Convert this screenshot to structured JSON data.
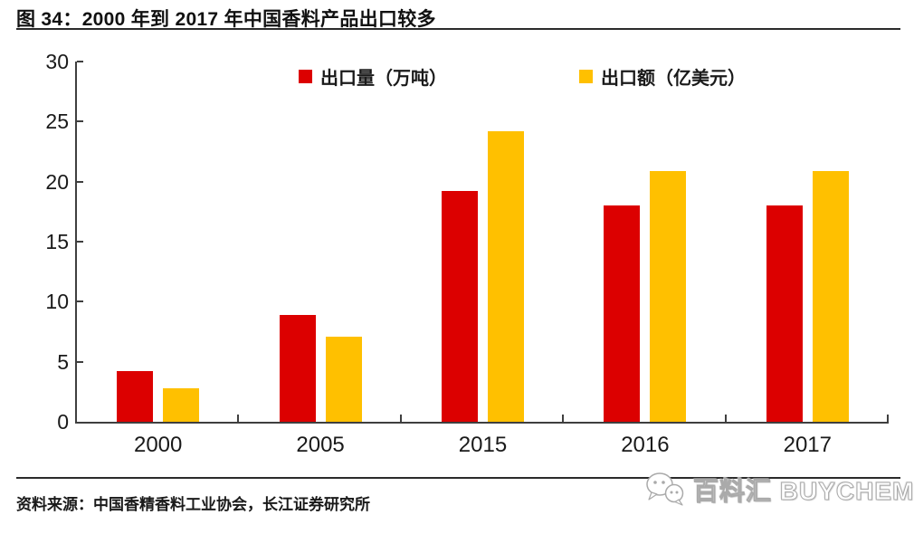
{
  "header": {
    "title": "图 34：2000 年到 2017 年中国香料产品出口较多"
  },
  "chart_data": {
    "type": "bar",
    "title": "2000 年到 2017 年中国香料产品出口较多",
    "categories": [
      "2000",
      "2005",
      "2015",
      "2016",
      "2017"
    ],
    "series": [
      {
        "name": "出口量（万吨）",
        "color": "#dc0000",
        "values": [
          4.2,
          8.9,
          19.2,
          18.0,
          18.0
        ]
      },
      {
        "name": "出口额（亿美元）",
        "color": "#ffc000",
        "values": [
          2.8,
          7.1,
          24.2,
          20.9,
          20.9
        ]
      }
    ],
    "xlabel": "",
    "ylabel": "",
    "ylim": [
      0,
      30
    ],
    "yticks": [
      0,
      5,
      10,
      15,
      20,
      25,
      30
    ],
    "grid": false,
    "legend_position": "top-inside"
  },
  "footer": {
    "source": "资料来源：中国香精香料工业协会，长江证券研究所",
    "watermark": "百料汇 BUYCHEMI",
    "watermark_icon": "wechat-icon"
  },
  "colors": {
    "series1": "#dc0000",
    "series2": "#ffc000",
    "axis": "#3f3f3f",
    "rule": "#2b2b2b",
    "text": "#1a1a1a"
  }
}
